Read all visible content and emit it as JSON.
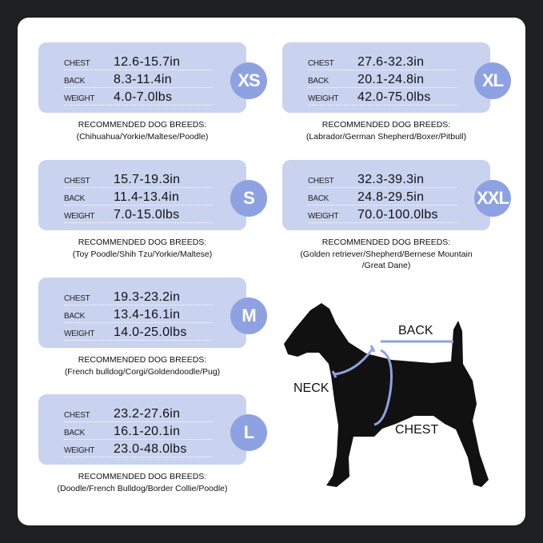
{
  "labels": {
    "chest": "CHEST",
    "back": "BACK",
    "weight": "WEIGHT"
  },
  "recommended_heading": "RECOMMENDED DOG BREEDS:",
  "sizes": [
    {
      "size": "XS",
      "chest": "12.6-15.7in",
      "back": "8.3-11.4in",
      "weight": "4.0-7.0lbs",
      "breeds": [
        "(Chihuahua/Yorkie/Maltese/Poodle)"
      ]
    },
    {
      "size": "S",
      "chest": "15.7-19.3in",
      "back": "11.4-13.4in",
      "weight": "7.0-15.0lbs",
      "breeds": [
        "(Toy Poodle/Shih Tzu/Yorkie/Maltese)"
      ]
    },
    {
      "size": "M",
      "chest": "19.3-23.2in",
      "back": "13.4-16.1in",
      "weight": "14.0-25.0lbs",
      "breeds": [
        "(French bulldog/Corgi/Goldendoodle/Pug)"
      ]
    },
    {
      "size": "L",
      "chest": "23.2-27.6in",
      "back": "16.1-20.1in",
      "weight": "23.0-48.0lbs",
      "breeds": [
        "(Doodle/French Bulldog/Border Collie/Poodle)"
      ]
    },
    {
      "size": "XL",
      "chest": "27.6-32.3in",
      "back": "20.1-24.8in",
      "weight": "42.0-75.0lbs",
      "breeds": [
        "(Labrador/German Shepherd/Boxer/Pitbull)"
      ]
    },
    {
      "size": "XXL",
      "chest": "32.3-39.3in",
      "back": "24.8-29.5in",
      "weight": "70.0-100.0lbs",
      "breeds": [
        "(Golden retriever/Shepherd/Bernese Mountain",
        "/Great Dane)"
      ]
    }
  ],
  "diagram": {
    "back": "BACK",
    "neck": "NECK",
    "chest": "CHEST"
  },
  "colors": {
    "card": "#c9d3ef",
    "badge": "#8ea2e2",
    "background": "#1e1f21"
  }
}
